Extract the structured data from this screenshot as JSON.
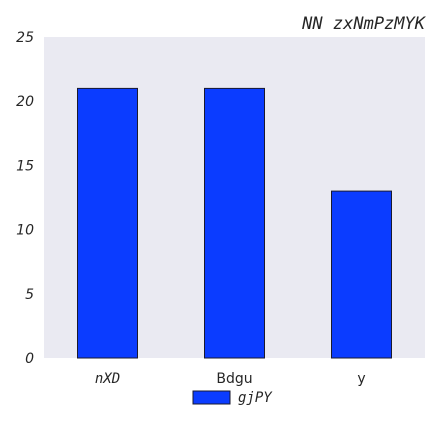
{
  "chart_data": {
    "type": "bar",
    "title": "NN zxNmPzMYK",
    "xlabel": "",
    "ylabel": "",
    "categories": [
      "nXD",
      "Bdgu",
      "y"
    ],
    "category_styles": [
      "italic",
      "normal",
      "normal"
    ],
    "series": [
      {
        "name": "gjPY",
        "values": [
          21,
          21,
          13
        ],
        "color": "#0b3cff"
      }
    ],
    "ylim": [
      0,
      25
    ],
    "yticks": [
      0,
      5,
      10,
      15,
      20,
      25
    ],
    "grid": false,
    "legend": "bottom-center"
  },
  "colors": {
    "plot_background": "#eaeaf2",
    "bar": "#0b3cff",
    "bar_edge": "#1a1a2e",
    "text": "#262626"
  }
}
